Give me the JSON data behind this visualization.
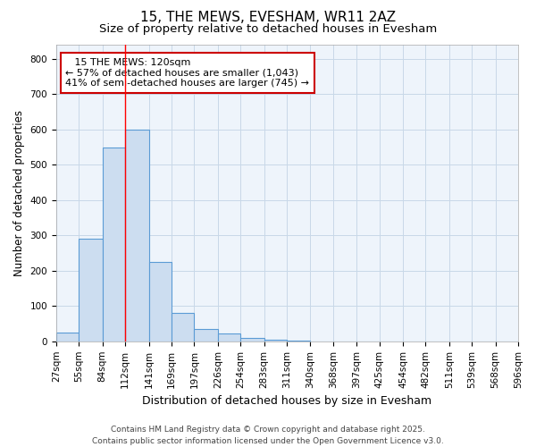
{
  "title": "15, THE MEWS, EVESHAM, WR11 2AZ",
  "subtitle": "Size of property relative to detached houses in Evesham",
  "xlabel": "Distribution of detached houses by size in Evesham",
  "ylabel": "Number of detached properties",
  "bins": [
    27,
    55,
    84,
    112,
    141,
    169,
    197,
    226,
    254,
    283,
    311,
    340,
    368,
    397,
    425,
    454,
    482,
    511,
    539,
    568,
    596
  ],
  "counts": [
    25,
    290,
    548,
    600,
    225,
    80,
    35,
    22,
    10,
    5,
    2,
    0,
    0,
    0,
    0,
    0,
    0,
    0,
    0,
    0
  ],
  "bar_color": "#ccddf0",
  "bar_edge_color": "#5b9bd5",
  "grid_color": "#c8d8e8",
  "background_color": "#eef4fb",
  "red_line_x": 112,
  "annotation_title": "15 THE MEWS: 120sqm",
  "annotation_line1": "← 57% of detached houses are smaller (1,043)",
  "annotation_line2": "41% of semi-detached houses are larger (745) →",
  "annotation_box_color": "#ffffff",
  "annotation_border_color": "#cc0000",
  "ylim": [
    0,
    840
  ],
  "yticks": [
    0,
    100,
    200,
    300,
    400,
    500,
    600,
    700,
    800
  ],
  "footer_line1": "Contains HM Land Registry data © Crown copyright and database right 2025.",
  "footer_line2": "Contains public sector information licensed under the Open Government Licence v3.0.",
  "title_fontsize": 11,
  "subtitle_fontsize": 9.5,
  "xlabel_fontsize": 9,
  "ylabel_fontsize": 8.5,
  "tick_fontsize": 7.5,
  "annotation_fontsize": 8,
  "footer_fontsize": 6.5
}
